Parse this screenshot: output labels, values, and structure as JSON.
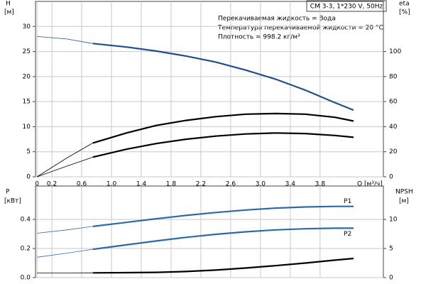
{
  "chart_data": [
    {
      "type": "line",
      "model": "СМ 3-3, 1*230 V, 50Hz",
      "notes": [
        "Перекачиваемая жидкость = Вода",
        "Температура перекачиваемой жидкости = 20 °C",
        "Плотность = 998.2 кг/м³"
      ],
      "ylabel": "H",
      "ylabel_unit": "[м]",
      "y2label": "eta",
      "y2label_unit": "[%]",
      "xlabel": "Q [м³/ч]",
      "x": [
        0,
        0.4,
        0.75,
        1.2,
        1.6,
        2.0,
        2.4,
        2.8,
        3.2,
        3.6,
        4.0,
        4.25
      ],
      "xlim": [
        -0.02,
        4.65
      ],
      "xticks": [
        0,
        0.2,
        0.6,
        {
          "value": 1,
          "label": "1.0"
        },
        1.4,
        1.8,
        2.2,
        2.6,
        {
          "value": 3,
          "label": "3.0"
        },
        3.4,
        3.8
      ],
      "ylim": [
        0,
        35
      ],
      "yticks": [
        0,
        5,
        10,
        15,
        20,
        25,
        30
      ],
      "y2lim": [
        0,
        140
      ],
      "y2ticks": [
        0,
        20,
        40,
        60,
        80,
        100
      ],
      "grid": true,
      "series": [
        {
          "color": "#1f4e8c",
          "values": [
            28,
            27.5,
            26.6,
            25.9,
            25.1,
            24.1,
            22.9,
            21.3,
            19.5,
            17.3,
            14.8,
            13.3
          ]
        },
        {
          "color": "#000000",
          "axis": "y2",
          "values": [
            0,
            15,
            27,
            35,
            41,
            45,
            48,
            50,
            50.5,
            50,
            47.5,
            44.5
          ]
        },
        {
          "color": "#000000",
          "axis": "y2",
          "values": [
            0,
            8.5,
            15.7,
            22,
            26.5,
            30,
            32.5,
            34.2,
            35,
            34.5,
            33,
            31.5
          ]
        }
      ]
    },
    {
      "type": "line",
      "ylabel": "P",
      "ylabel_unit": "[кВт]",
      "y2label": "NPSH",
      "y2label_unit": "[м]",
      "x": [
        0,
        0.4,
        0.75,
        1.2,
        1.6,
        2.0,
        2.4,
        2.8,
        3.2,
        3.6,
        4.0,
        4.25
      ],
      "xlim": [
        -0.02,
        4.65
      ],
      "ylim": [
        0,
        0.63
      ],
      "yticks": [
        {
          "value": 0,
          "label": "0.0"
        },
        0.2,
        0.4
      ],
      "y2lim": [
        0,
        15.75
      ],
      "y2ticks": [
        0,
        5,
        10
      ],
      "grid": true,
      "series": [
        {
          "name": "P1",
          "color": "#2d6aa8",
          "values": [
            0.305,
            0.328,
            0.352,
            0.38,
            0.405,
            0.428,
            0.448,
            0.465,
            0.478,
            0.486,
            0.49,
            0.49
          ]
        },
        {
          "name": "P2",
          "color": "#2d6aa8",
          "values": [
            0.14,
            0.168,
            0.195,
            0.225,
            0.252,
            0.277,
            0.298,
            0.315,
            0.328,
            0.336,
            0.34,
            0.34
          ]
        },
        {
          "color": "#000000",
          "axis": "y2",
          "values": [
            0.8,
            0.8,
            0.82,
            0.85,
            0.9,
            1.05,
            1.3,
            1.65,
            2.05,
            2.5,
            3.0,
            3.3
          ]
        }
      ]
    }
  ]
}
